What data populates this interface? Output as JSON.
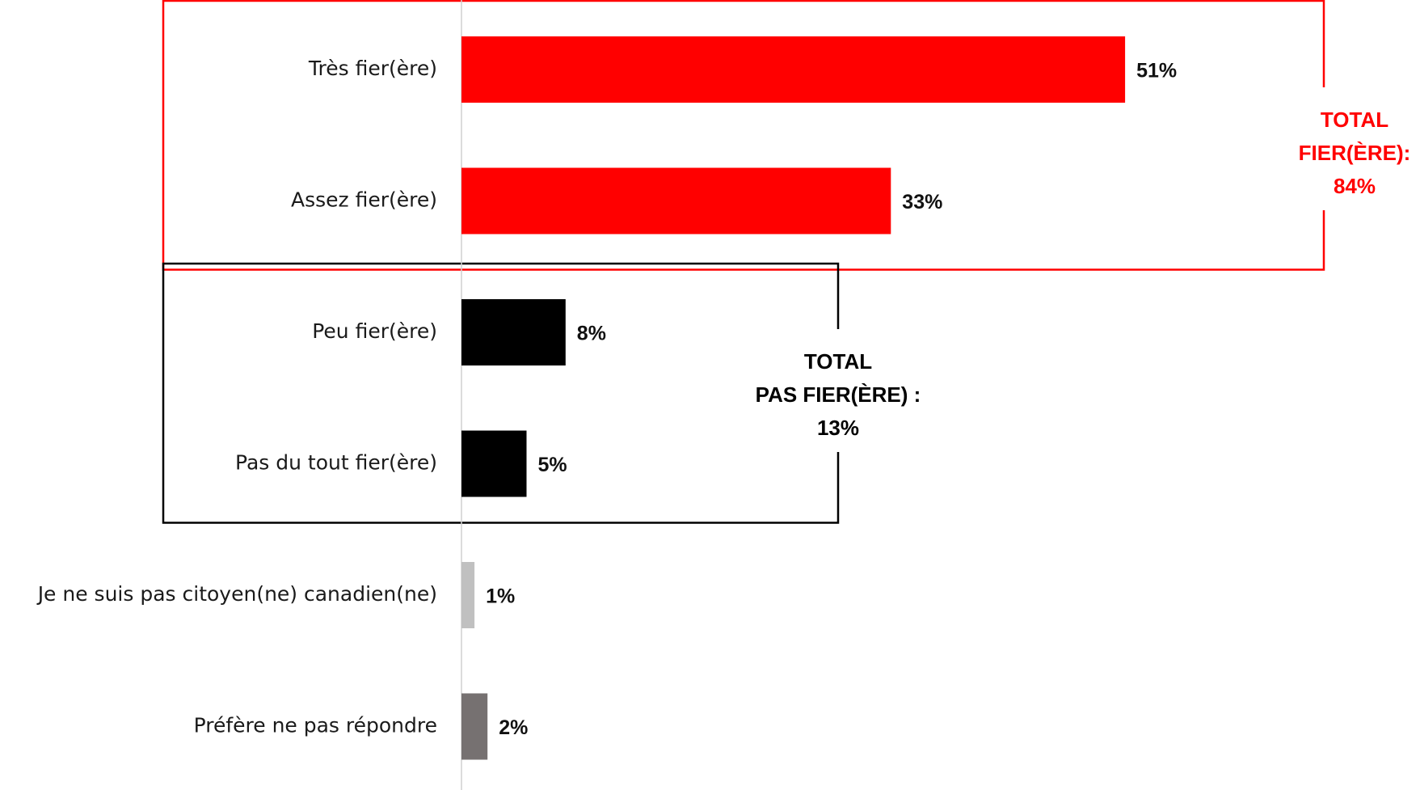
{
  "chart_data": {
    "type": "bar",
    "orientation": "horizontal",
    "categories": [
      "Très fier(ère)",
      "Assez fier(ère)",
      "Peu fier(ère)",
      "Pas du tout fier(ère)",
      "Je ne suis pas citoyen(ne) canadien(ne)",
      "Préfère ne pas répondre"
    ],
    "values": [
      51,
      33,
      8,
      5,
      1,
      2
    ],
    "value_labels": [
      "51%",
      "33%",
      "8%",
      "5%",
      "1%",
      "2%"
    ],
    "bar_colors": [
      "#ff0000",
      "#ff0000",
      "#000000",
      "#000000",
      "#c0c0c0",
      "#767171"
    ],
    "xlim": [
      0,
      60
    ],
    "unit": "%",
    "groups": [
      {
        "name": "fier",
        "members": [
          0,
          1
        ],
        "color": "#ff0000",
        "label_lines": [
          "TOTAL",
          "FIER(ÈRE):",
          "84%"
        ]
      },
      {
        "name": "pas-fier",
        "members": [
          2,
          3
        ],
        "color": "#000000",
        "label_lines": [
          "TOTAL",
          "PAS FIER(ÈRE) :",
          "13%"
        ]
      }
    ],
    "axis_line_color": "#d0d0d0",
    "grid": false,
    "legend": "none"
  }
}
